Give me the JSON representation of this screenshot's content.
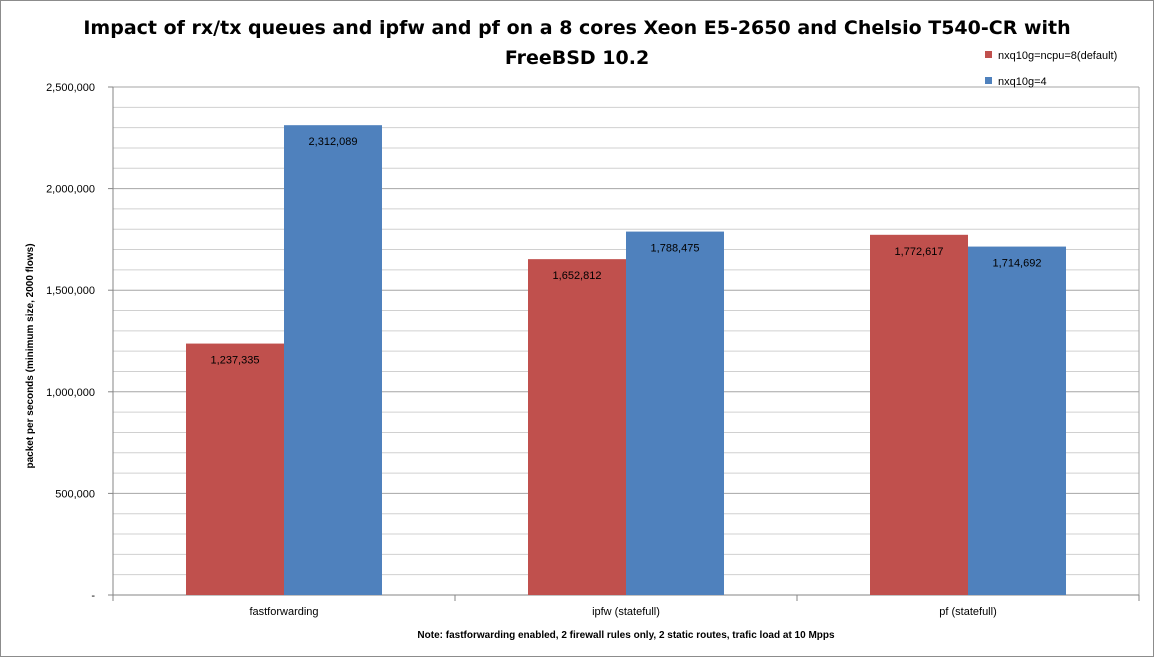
{
  "chart_data": {
    "type": "bar",
    "title_lines": [
      "Impact of rx/tx queues and ipfw and pf on a 8 cores Xeon E5-2650 and Chelsio T540-CR with",
      "FreeBSD 10.2"
    ],
    "categories": [
      "fastforwarding",
      "ipfw (statefull)",
      "pf (statefull)"
    ],
    "series": [
      {
        "name": "nxq10g=ncpu=8(default)",
        "color": "#c0504d",
        "values": [
          1237335,
          1652812,
          1772617
        ],
        "labels": [
          "1,237,335",
          "1,652,812",
          "1,772,617"
        ]
      },
      {
        "name": "nxq10g=4",
        "color": "#4f81bd",
        "values": [
          2312089,
          1788475,
          1714692
        ],
        "labels": [
          "2,312,089",
          "1,788,475",
          "1,714,692"
        ]
      }
    ],
    "ylim": [
      0,
      2500000
    ],
    "ytick_values": [
      0,
      500000,
      1000000,
      1500000,
      2000000,
      2500000
    ],
    "ytick_labels": [
      "-",
      "500,000",
      "1,000,000",
      "1,500,000",
      "2,000,000",
      "2,500,000"
    ],
    "minor_step": 100000,
    "ylabel": "packet per seconds (minimum size, 2000 flows)",
    "xlabel": "Note: fastforwarding enabled, 2 firewall rules only, 2 static routes, trafic load at 10 Mpps",
    "grid": true,
    "legend_position": "top-right"
  }
}
